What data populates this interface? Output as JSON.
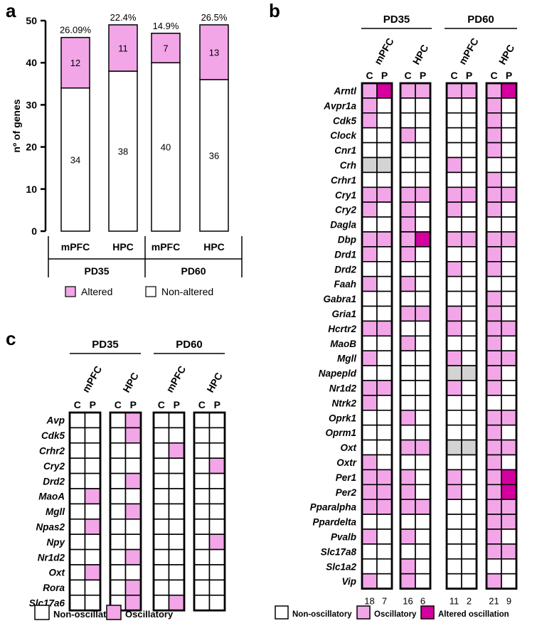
{
  "colors": {
    "altered": "#f2a6e8",
    "oscillatory": "#f2a6e8",
    "altered_oscillation": "#d4009f",
    "na": "#d3d3d3",
    "empty": "#ffffff",
    "stroke": "#000000"
  },
  "panel_letters": {
    "a": "a",
    "b": "b",
    "c": "c"
  },
  "chart_data": [
    {
      "type": "bar",
      "panel": "a",
      "ylabel": "nº of genes",
      "ylim": [
        0,
        50
      ],
      "yticks": [
        0,
        10,
        20,
        30,
        40,
        50
      ],
      "categories": [
        "mPFC",
        "HPC",
        "mPFC",
        "HPC"
      ],
      "groups": [
        "PD35",
        "PD60"
      ],
      "series": [
        {
          "name": "Non-altered",
          "values": [
            34,
            38,
            40,
            36
          ]
        },
        {
          "name": "Altered",
          "values": [
            12,
            11,
            7,
            13
          ]
        }
      ],
      "percent_labels": [
        "26.09%",
        "22.4%",
        "14.9%",
        "26.5%"
      ],
      "legend": [
        "Altered",
        "Non-altered"
      ]
    },
    {
      "type": "heatmap",
      "panel": "b",
      "groups": [
        "PD35",
        "PD60"
      ],
      "regions": [
        "mPFC",
        "HPC",
        "mPFC",
        "HPC"
      ],
      "columns": [
        "C",
        "P"
      ],
      "genes": [
        "Arntl",
        "Avpr1a",
        "Cdk5",
        "Clock",
        "Cnr1",
        "Crh",
        "Crhr1",
        "Cry1",
        "Cry2",
        "Dagla",
        "Dbp",
        "Drd1",
        "Drd2",
        "Faah",
        "Gabra1",
        "Gria1",
        "Hcrtr2",
        "MaoB",
        "Mgll",
        "Napepld",
        "Nr1d2",
        "Ntrk2",
        "Oprk1",
        "Oprm1",
        "Oxt",
        "Oxtr",
        "Per1",
        "Per2",
        "Pparalpha",
        "Ppardelta",
        "Pvalb",
        "Slc17a8",
        "Slc1a2",
        "Vip"
      ],
      "cells": [
        [
          [
            1,
            2
          ],
          [
            1,
            1
          ],
          [
            1,
            1
          ],
          [
            1,
            2
          ]
        ],
        [
          [
            1,
            0
          ],
          [
            0,
            0
          ],
          [
            0,
            0
          ],
          [
            1,
            0
          ]
        ],
        [
          [
            1,
            0
          ],
          [
            0,
            0
          ],
          [
            0,
            0
          ],
          [
            1,
            0
          ]
        ],
        [
          [
            0,
            0
          ],
          [
            1,
            0
          ],
          [
            0,
            0
          ],
          [
            1,
            0
          ]
        ],
        [
          [
            0,
            0
          ],
          [
            0,
            0
          ],
          [
            0,
            0
          ],
          [
            1,
            0
          ]
        ],
        [
          [
            3,
            3
          ],
          [
            0,
            0
          ],
          [
            1,
            0
          ],
          [
            0,
            0
          ]
        ],
        [
          [
            0,
            0
          ],
          [
            0,
            0
          ],
          [
            0,
            0
          ],
          [
            1,
            0
          ]
        ],
        [
          [
            1,
            1
          ],
          [
            1,
            1
          ],
          [
            1,
            1
          ],
          [
            1,
            1
          ]
        ],
        [
          [
            1,
            0
          ],
          [
            1,
            0
          ],
          [
            1,
            0
          ],
          [
            1,
            0
          ]
        ],
        [
          [
            0,
            0
          ],
          [
            1,
            0
          ],
          [
            0,
            0
          ],
          [
            0,
            0
          ]
        ],
        [
          [
            1,
            1
          ],
          [
            1,
            2
          ],
          [
            1,
            1
          ],
          [
            1,
            1
          ]
        ],
        [
          [
            1,
            0
          ],
          [
            1,
            0
          ],
          [
            0,
            0
          ],
          [
            1,
            0
          ]
        ],
        [
          [
            0,
            0
          ],
          [
            0,
            0
          ],
          [
            1,
            0
          ],
          [
            1,
            0
          ]
        ],
        [
          [
            1,
            0
          ],
          [
            1,
            0
          ],
          [
            0,
            0
          ],
          [
            0,
            0
          ]
        ],
        [
          [
            0,
            0
          ],
          [
            0,
            0
          ],
          [
            0,
            0
          ],
          [
            1,
            0
          ]
        ],
        [
          [
            0,
            0
          ],
          [
            1,
            1
          ],
          [
            1,
            0
          ],
          [
            1,
            0
          ]
        ],
        [
          [
            1,
            1
          ],
          [
            0,
            0
          ],
          [
            1,
            0
          ],
          [
            1,
            1
          ]
        ],
        [
          [
            0,
            0
          ],
          [
            1,
            0
          ],
          [
            0,
            0
          ],
          [
            1,
            0
          ]
        ],
        [
          [
            1,
            0
          ],
          [
            0,
            0
          ],
          [
            1,
            0
          ],
          [
            1,
            1
          ]
        ],
        [
          [
            0,
            0
          ],
          [
            0,
            0
          ],
          [
            3,
            3
          ],
          [
            1,
            0
          ]
        ],
        [
          [
            1,
            1
          ],
          [
            0,
            0
          ],
          [
            1,
            0
          ],
          [
            1,
            0
          ]
        ],
        [
          [
            1,
            0
          ],
          [
            0,
            0
          ],
          [
            0,
            0
          ],
          [
            0,
            0
          ]
        ],
        [
          [
            0,
            0
          ],
          [
            1,
            0
          ],
          [
            0,
            0
          ],
          [
            1,
            1
          ]
        ],
        [
          [
            0,
            0
          ],
          [
            0,
            0
          ],
          [
            0,
            0
          ],
          [
            1,
            0
          ]
        ],
        [
          [
            0,
            0
          ],
          [
            1,
            1
          ],
          [
            3,
            3
          ],
          [
            1,
            1
          ]
        ],
        [
          [
            1,
            0
          ],
          [
            0,
            0
          ],
          [
            0,
            0
          ],
          [
            1,
            0
          ]
        ],
        [
          [
            1,
            1
          ],
          [
            1,
            0
          ],
          [
            1,
            0
          ],
          [
            1,
            2
          ]
        ],
        [
          [
            1,
            1
          ],
          [
            1,
            0
          ],
          [
            1,
            0
          ],
          [
            1,
            2
          ]
        ],
        [
          [
            1,
            1
          ],
          [
            1,
            1
          ],
          [
            0,
            0
          ],
          [
            1,
            1
          ]
        ],
        [
          [
            0,
            0
          ],
          [
            0,
            0
          ],
          [
            0,
            0
          ],
          [
            1,
            1
          ]
        ],
        [
          [
            1,
            0
          ],
          [
            1,
            0
          ],
          [
            0,
            0
          ],
          [
            1,
            0
          ]
        ],
        [
          [
            0,
            0
          ],
          [
            0,
            0
          ],
          [
            0,
            0
          ],
          [
            1,
            1
          ]
        ],
        [
          [
            0,
            0
          ],
          [
            1,
            0
          ],
          [
            0,
            0
          ],
          [
            0,
            0
          ]
        ],
        [
          [
            1,
            0
          ],
          [
            1,
            0
          ],
          [
            0,
            0
          ],
          [
            1,
            0
          ]
        ]
      ],
      "counts": [
        [
          "18",
          "7"
        ],
        [
          "16",
          "6"
        ],
        [
          "11",
          "2"
        ],
        [
          "21",
          "9"
        ]
      ],
      "legend": [
        "Non-oscillatory",
        "Oscillatory",
        "Altered oscillation"
      ]
    },
    {
      "type": "heatmap",
      "panel": "c",
      "groups": [
        "PD35",
        "PD60"
      ],
      "regions": [
        "mPFC",
        "HPC",
        "mPFC",
        "HPC"
      ],
      "columns": [
        "C",
        "P"
      ],
      "genes": [
        "Avp",
        "Cdk5",
        "Crhr2",
        "Cry2",
        "Drd2",
        "MaoA",
        "Mgll",
        "Npas2",
        "Npy",
        "Nr1d2",
        "Oxt",
        "Rora",
        "Slc17a6"
      ],
      "cells": [
        [
          [
            0,
            0
          ],
          [
            0,
            1
          ],
          [
            0,
            0
          ],
          [
            0,
            0
          ]
        ],
        [
          [
            0,
            0
          ],
          [
            0,
            1
          ],
          [
            0,
            0
          ],
          [
            0,
            0
          ]
        ],
        [
          [
            0,
            0
          ],
          [
            0,
            0
          ],
          [
            0,
            1
          ],
          [
            0,
            0
          ]
        ],
        [
          [
            0,
            0
          ],
          [
            0,
            0
          ],
          [
            0,
            0
          ],
          [
            0,
            1
          ]
        ],
        [
          [
            0,
            0
          ],
          [
            0,
            1
          ],
          [
            0,
            0
          ],
          [
            0,
            0
          ]
        ],
        [
          [
            0,
            1
          ],
          [
            0,
            0
          ],
          [
            0,
            0
          ],
          [
            0,
            0
          ]
        ],
        [
          [
            0,
            0
          ],
          [
            0,
            1
          ],
          [
            0,
            0
          ],
          [
            0,
            0
          ]
        ],
        [
          [
            0,
            1
          ],
          [
            0,
            0
          ],
          [
            0,
            0
          ],
          [
            0,
            0
          ]
        ],
        [
          [
            0,
            0
          ],
          [
            0,
            0
          ],
          [
            0,
            0
          ],
          [
            0,
            1
          ]
        ],
        [
          [
            0,
            0
          ],
          [
            0,
            1
          ],
          [
            0,
            0
          ],
          [
            0,
            0
          ]
        ],
        [
          [
            0,
            1
          ],
          [
            0,
            0
          ],
          [
            0,
            0
          ],
          [
            0,
            0
          ]
        ],
        [
          [
            0,
            0
          ],
          [
            0,
            1
          ],
          [
            0,
            0
          ],
          [
            0,
            0
          ]
        ],
        [
          [
            0,
            0
          ],
          [
            0,
            1
          ],
          [
            0,
            1
          ],
          [
            0,
            0
          ]
        ]
      ],
      "legend": [
        "Non-oscillatory",
        "Oscillatory"
      ]
    }
  ]
}
